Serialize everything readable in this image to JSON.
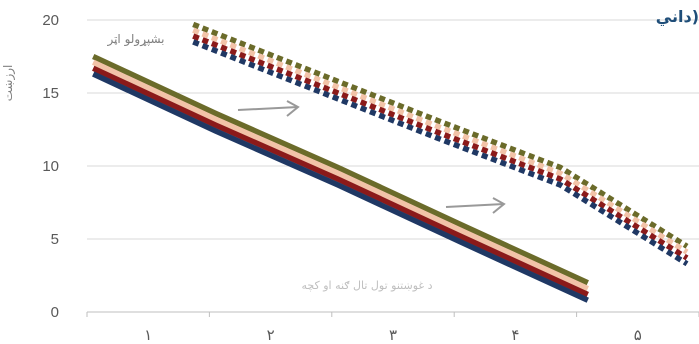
{
  "chart_data": {
    "type": "line",
    "title": "داني)",
    "ylabel": "ارزښت",
    "ylim": [
      0,
      20
    ],
    "y_ticks": [
      "0",
      "5",
      "10",
      "15",
      "20"
    ],
    "categories": [
      "١",
      "٢",
      "٣",
      "۴",
      "۵"
    ],
    "grid": true,
    "series": [
      {
        "group": "solid",
        "color": "#6b6b2a",
        "values": [
          17.5,
          13.6,
          9.9,
          6.0,
          2.0
        ]
      },
      {
        "group": "solid",
        "color": "#f2c3a8",
        "values": [
          17.1,
          13.2,
          9.5,
          5.6,
          1.6
        ]
      },
      {
        "group": "solid",
        "color": "#8b1a1a",
        "values": [
          16.7,
          12.8,
          9.1,
          5.2,
          1.2
        ]
      },
      {
        "group": "solid",
        "color": "#1f3864",
        "values": [
          16.3,
          12.4,
          8.7,
          4.8,
          0.8
        ]
      },
      {
        "group": "dashed",
        "color": "#6b6b2a",
        "values": [
          19.7,
          16.4,
          13.1,
          9.9,
          4.5
        ]
      },
      {
        "group": "dashed",
        "color": "#f2c3a8",
        "values": [
          19.3,
          16.0,
          12.7,
          9.5,
          4.1
        ]
      },
      {
        "group": "dashed",
        "color": "#8b1a1a",
        "values": [
          18.9,
          15.6,
          12.3,
          9.1,
          3.7
        ]
      },
      {
        "group": "dashed",
        "color": "#1f3864",
        "values": [
          18.5,
          15.2,
          11.9,
          8.7,
          3.3
        ]
      }
    ],
    "annotations": {
      "upper_label": "بشپړولو اټر",
      "lower_label": "د غوښتنو تول تال ګنه او کچه"
    }
  }
}
